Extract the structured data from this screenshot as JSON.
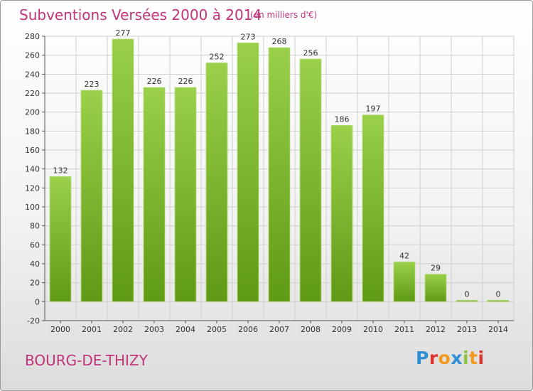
{
  "header": {
    "title": "Subventions Versées 2000 à 2014",
    "unit": "(en milliers d'€)"
  },
  "footer": {
    "commune": "BOURG-DE-THIZY",
    "brand_letters": [
      "P",
      "r",
      "o",
      "x",
      "i",
      "t",
      "i"
    ]
  },
  "colors": {
    "title": "#c2337a",
    "bar_light": "#9ad04a",
    "bar_dark": "#5f9a14",
    "grid": "#cfcfcf",
    "axis": "#555555"
  },
  "chart_data": {
    "type": "bar",
    "title": "Subventions Versées 2000 à 2014",
    "subtitle": "(en milliers d'€)",
    "xlabel": "",
    "ylabel": "",
    "categories": [
      "2000",
      "2001",
      "2002",
      "2003",
      "2004",
      "2005",
      "2006",
      "2007",
      "2008",
      "2009",
      "2010",
      "2011",
      "2012",
      "2013",
      "2014"
    ],
    "values": [
      132,
      223,
      277,
      226,
      226,
      252,
      273,
      268,
      256,
      186,
      197,
      42,
      29,
      0,
      0
    ],
    "ylim": [
      -20,
      280
    ],
    "yticks": [
      -20,
      0,
      20,
      40,
      60,
      80,
      100,
      120,
      140,
      160,
      180,
      200,
      220,
      240,
      260,
      280
    ],
    "grid": true,
    "data_labels": true
  }
}
